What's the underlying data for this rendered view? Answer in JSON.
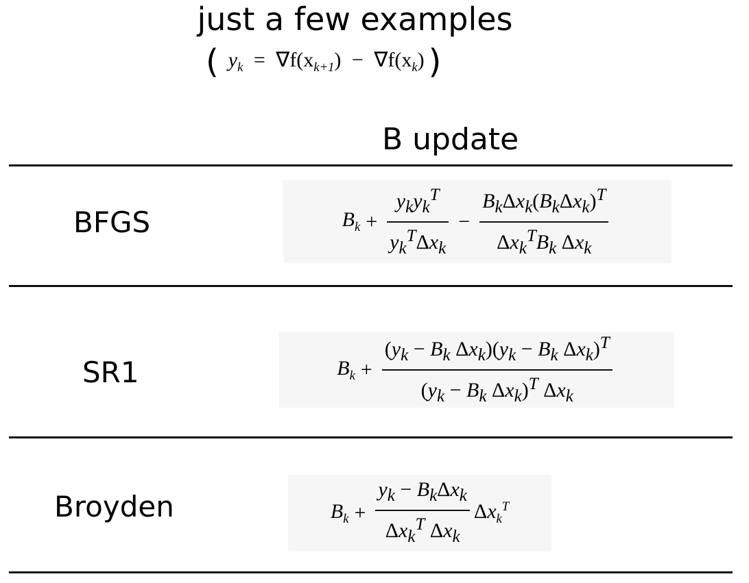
{
  "title": "just a few examples",
  "subtitle": {
    "open_paren": "(",
    "close_paren": ")",
    "lhs": "y",
    "lhs_sub": "k",
    "equals": "=",
    "term1": "∇f(x",
    "term1_sub": "k+1",
    "term1_close": ")",
    "minus": "−",
    "term2": "∇f(x",
    "term2_sub": "k",
    "term2_close": ")"
  },
  "column_header": "B update",
  "rows": [
    {
      "label": "BFGS",
      "lead": "B",
      "lead_sub": "k",
      "plus": "+",
      "frac1_num": "y_k y_k^T",
      "frac1_den": "y_k^T Δx_k",
      "minus": "−",
      "frac2_num": "B_k Δx_k (B_k Δx_k)^T",
      "frac2_den": "Δx_k^T B_k Δx_k"
    },
    {
      "label": "SR1",
      "lead": "B",
      "lead_sub": "k",
      "plus": "+",
      "frac_num": "(y_k − B_k Δx_k)(y_k − B_k Δx_k)^T",
      "frac_den": "(y_k − B_k Δx_k)^T Δx_k"
    },
    {
      "label": "Broyden",
      "lead": "B",
      "lead_sub": "k",
      "plus": "+",
      "frac_num": "y_k − B_k Δx_k",
      "frac_den": "Δx_k^T Δx_k",
      "tail": "Δx_k^T"
    }
  ]
}
